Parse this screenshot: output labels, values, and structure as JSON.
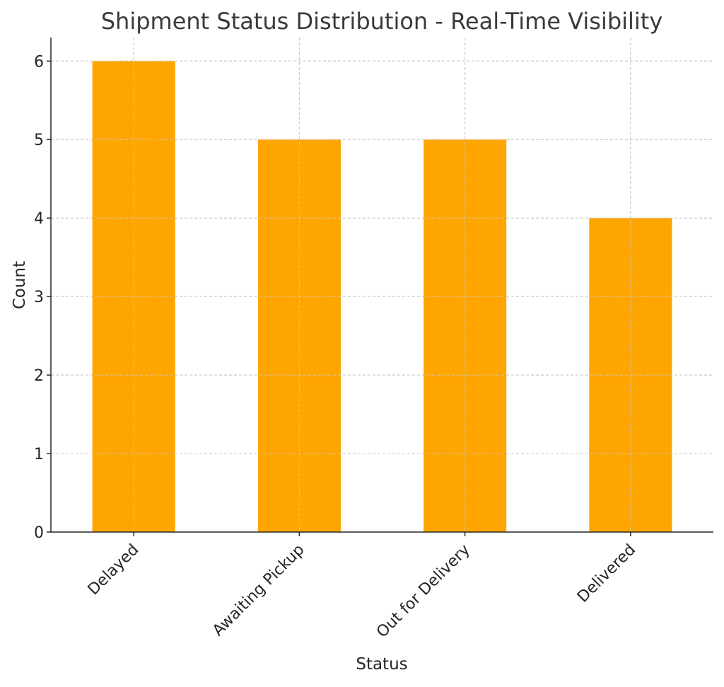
{
  "chart_data": {
    "type": "bar",
    "title": "Shipment Status Distribution - Real-Time Visibility",
    "xlabel": "Status",
    "ylabel": "Count",
    "categories": [
      "Delayed",
      "Awaiting Pickup",
      "Out for Delivery",
      "Delivered"
    ],
    "values": [
      6,
      5,
      5,
      4
    ],
    "ylim": [
      0,
      6.3
    ],
    "yticks": [
      0,
      1,
      2,
      3,
      4,
      5,
      6
    ],
    "grid": true,
    "legend": "none",
    "colors": {
      "bar": "#FFA500",
      "grid": "#c8c8c8",
      "axis": "#262626",
      "text": "#262626",
      "title": "#3a3a3a"
    }
  }
}
